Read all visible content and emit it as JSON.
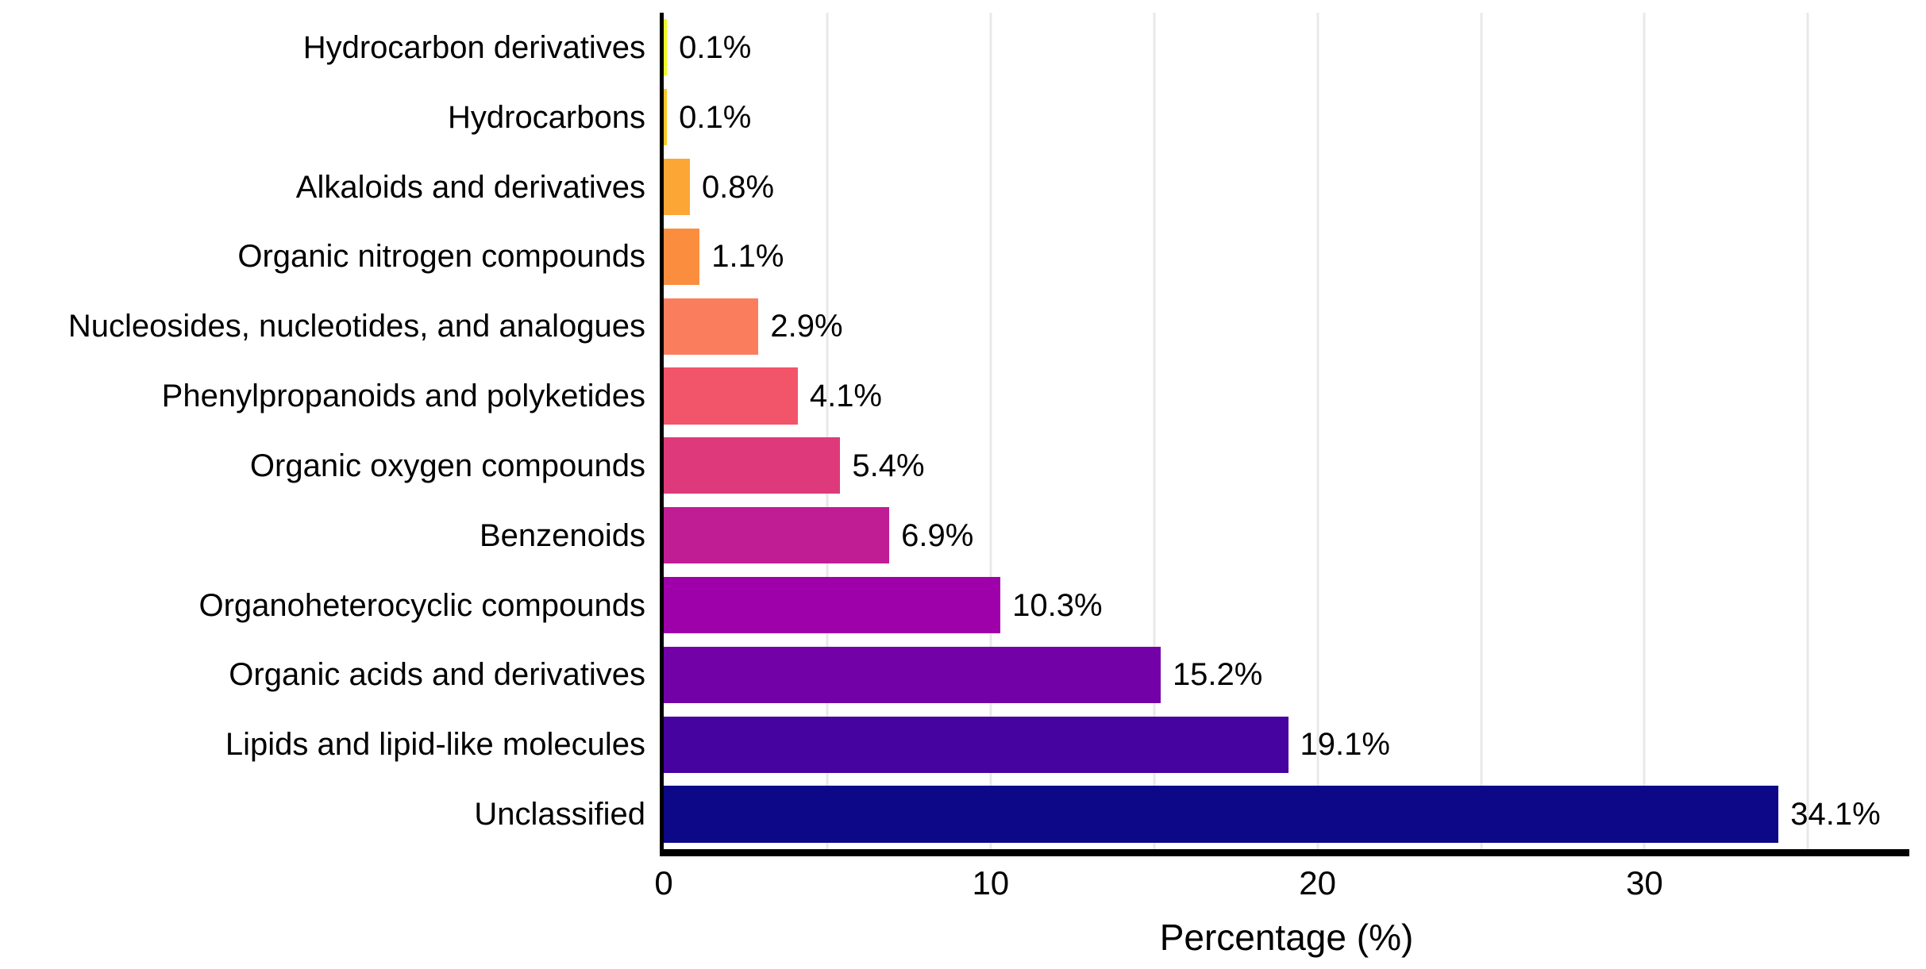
{
  "chart_data": {
    "type": "bar",
    "orientation": "horizontal",
    "title": "",
    "xlabel": "Percentage (%)",
    "ylabel": "",
    "xlim": [
      0,
      38.1
    ],
    "xticks": [
      0,
      10,
      20,
      30
    ],
    "gridline_values": [
      5,
      10,
      15,
      20,
      25,
      30,
      35
    ],
    "grid": "vertical light-gray lines every 5 units",
    "legend": "none",
    "categories": [
      "Hydrocarbon derivatives",
      "Hydrocarbons",
      "Alkaloids and derivatives",
      "Organic nitrogen compounds",
      "Nucleosides, nucleotides, and analogues",
      "Phenylpropanoids and polyketides",
      "Organic oxygen compounds",
      "Benzenoids",
      "Organoheterocyclic compounds",
      "Organic acids and derivatives",
      "Lipids and lipid-like molecules",
      "Unclassified"
    ],
    "values": [
      0.1,
      0.1,
      0.8,
      1.1,
      2.9,
      4.1,
      5.4,
      6.9,
      10.3,
      15.2,
      19.1,
      34.1
    ],
    "value_labels": [
      "0.1%",
      "0.1%",
      "0.8%",
      "1.1%",
      "2.9%",
      "4.1%",
      "5.4%",
      "6.9%",
      "10.3%",
      "15.2%",
      "19.1%",
      "34.1%"
    ],
    "bar_colors": [
      "#EFF821",
      "#FDC827",
      "#FCA636",
      "#FA8E3E",
      "#FA7E5E",
      "#F25469",
      "#DE3A7B",
      "#C01D94",
      "#9E01A9",
      "#7201A8",
      "#46039F",
      "#0D0887"
    ],
    "colormap": "plasma (reversed, 12 steps)",
    "axis_color": "#000000",
    "grid_color": "#E9E9E9",
    "text_color": "#000000",
    "background_color": "#FFFFFF"
  }
}
